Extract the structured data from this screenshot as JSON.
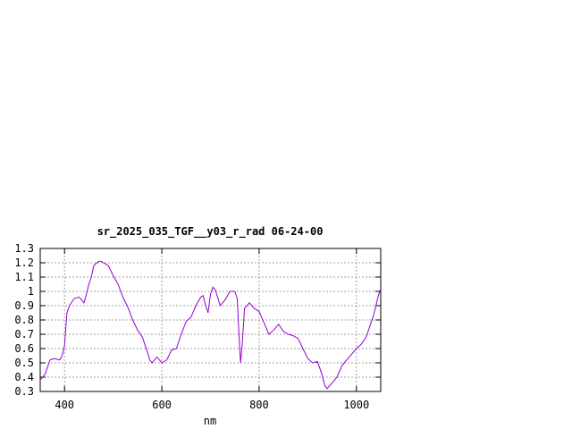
{
  "chart_data": {
    "type": "line",
    "title": "sr_2025_035_TGF__y03_r_rad 06-24-00",
    "xlabel": "nm",
    "ylabel": "",
    "xlim": [
      350,
      1050
    ],
    "ylim": [
      0.3,
      1.3
    ],
    "x_ticks": [
      400,
      600,
      800,
      1000
    ],
    "x_tick_labels": [
      "400",
      "600",
      "800",
      "1000"
    ],
    "y_ticks": [
      0.3,
      0.4,
      0.5,
      0.6,
      0.7,
      0.8,
      0.9,
      1.0,
      1.1,
      1.2,
      1.3
    ],
    "y_tick_labels": [
      "0.3",
      "0.4",
      "0.5",
      "0.6",
      "0.7",
      "0.8",
      "0.9",
      "1",
      "1.1",
      "1.2",
      "1.3"
    ],
    "grid": true,
    "line_color": "#9400d3",
    "series": [
      {
        "x": [
          350,
          360,
          365,
          370,
          380,
          390,
          395,
          400,
          405,
          410,
          420,
          430,
          440,
          445,
          450,
          455,
          460,
          470,
          475,
          480,
          490,
          500,
          510,
          520,
          530,
          540,
          550,
          560,
          570,
          575,
          580,
          590,
          600,
          610,
          620,
          630,
          640,
          650,
          660,
          670,
          680,
          685,
          690,
          695,
          700,
          705,
          710,
          720,
          730,
          740,
          750,
          755,
          760,
          762,
          765,
          770,
          780,
          790,
          800,
          810,
          820,
          830,
          840,
          850,
          860,
          870,
          880,
          890,
          900,
          910,
          920,
          930,
          935,
          940,
          945,
          950,
          960,
          970,
          980,
          990,
          1000,
          1010,
          1020,
          1030,
          1035,
          1040,
          1045,
          1050
        ],
        "y": [
          0.38,
          0.42,
          0.47,
          0.52,
          0.53,
          0.52,
          0.55,
          0.62,
          0.85,
          0.9,
          0.95,
          0.96,
          0.92,
          0.98,
          1.05,
          1.1,
          1.18,
          1.21,
          1.21,
          1.2,
          1.18,
          1.11,
          1.05,
          0.96,
          0.89,
          0.8,
          0.73,
          0.68,
          0.58,
          0.52,
          0.5,
          0.54,
          0.5,
          0.52,
          0.59,
          0.6,
          0.7,
          0.79,
          0.82,
          0.9,
          0.96,
          0.97,
          0.9,
          0.85,
          0.98,
          1.03,
          1.01,
          0.9,
          0.94,
          1.0,
          1.0,
          0.95,
          0.6,
          0.5,
          0.62,
          0.88,
          0.92,
          0.88,
          0.86,
          0.78,
          0.7,
          0.73,
          0.77,
          0.72,
          0.7,
          0.69,
          0.67,
          0.6,
          0.53,
          0.5,
          0.51,
          0.41,
          0.34,
          0.32,
          0.34,
          0.36,
          0.4,
          0.48,
          0.52,
          0.56,
          0.6,
          0.63,
          0.68,
          0.78,
          0.83,
          0.9,
          0.97,
          1.02
        ]
      }
    ]
  }
}
